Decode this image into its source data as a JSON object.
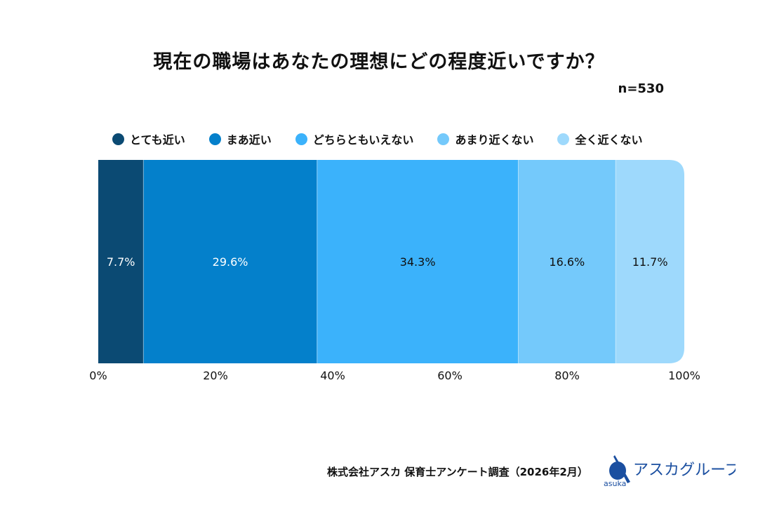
{
  "chart_data": {
    "type": "bar",
    "orientation": "horizontal-stacked-100",
    "title": "現在の職場はあなたの理想にどの程度近いですか？",
    "sample_size": "n=530",
    "series": [
      {
        "name": "とても近い",
        "value": 7.7,
        "label": "7.7%",
        "color": "#0b4a73",
        "text_color": "#ffffff"
      },
      {
        "name": "まあ近い",
        "value": 29.6,
        "label": "29.6%",
        "color": "#0480cb",
        "text_color": "#ffffff"
      },
      {
        "name": "どちらともいえない",
        "value": 34.3,
        "label": "34.3%",
        "color": "#3bb2fb",
        "text_color": "#111111"
      },
      {
        "name": "あまり近くない",
        "value": 16.6,
        "label": "16.6%",
        "color": "#74c9fb",
        "text_color": "#111111"
      },
      {
        "name": "全く近くない",
        "value": 11.7,
        "label": "11.7%",
        "color": "#9ed9fc",
        "text_color": "#111111"
      }
    ],
    "xlim": [
      0,
      100
    ],
    "xticks": [
      "0%",
      "20%",
      "40%",
      "60%",
      "80%",
      "100%"
    ],
    "legend_position": "top"
  },
  "footer": {
    "source": "株式会社アスカ 保育士アンケート調査（2026年2月）",
    "logo_text": "アスカグループ",
    "logo_sub": "asuka",
    "logo_color": "#1b4fa0"
  }
}
